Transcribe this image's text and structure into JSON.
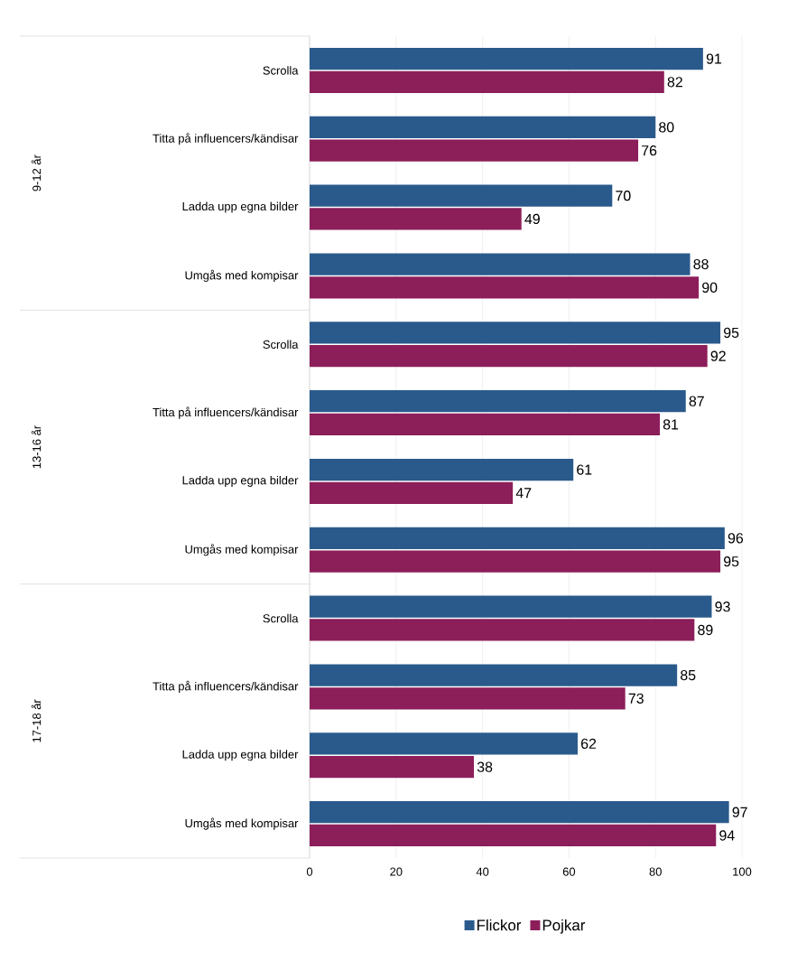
{
  "chart_data": {
    "type": "bar",
    "orientation": "horizontal",
    "categories": [
      "Scrolla",
      "Titta på influencers/kändisar",
      "Ladda upp egna bilder",
      "Umgås med kompisar",
      "Scrolla",
      "Titta på influencers/kändisar",
      "Ladda upp egna bilder",
      "Umgås med kompisar",
      "Scrolla",
      "Titta på influencers/kändisar",
      "Ladda upp egna bilder",
      "Umgås med kompisar"
    ],
    "series": [
      {
        "name": "Flickor",
        "color": "#2a5a8c",
        "values": [
          91,
          80,
          70,
          88,
          95,
          87,
          61,
          96,
          93,
          85,
          62,
          97
        ]
      },
      {
        "name": "Pojkar",
        "color": "#8c1e5a",
        "values": [
          82,
          76,
          49,
          90,
          92,
          81,
          47,
          95,
          89,
          73,
          38,
          94
        ]
      }
    ],
    "annotations": [
      "9-12 år",
      "13-16 år",
      "17-18 år"
    ],
    "xlim": [
      0,
      100
    ],
    "xticks": [
      0,
      20,
      40,
      60,
      80,
      100
    ],
    "grid": "x",
    "legend": "bottom",
    "data_labels": true
  }
}
